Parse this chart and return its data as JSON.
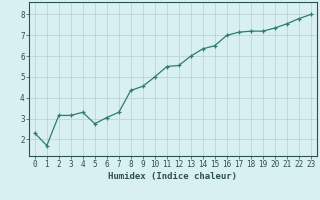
{
  "x": [
    0,
    1,
    2,
    3,
    4,
    5,
    6,
    7,
    8,
    9,
    10,
    11,
    12,
    13,
    14,
    15,
    16,
    17,
    18,
    19,
    20,
    21,
    22,
    23
  ],
  "y": [
    2.3,
    1.7,
    3.15,
    3.15,
    3.3,
    2.75,
    3.05,
    3.3,
    4.35,
    4.55,
    5.0,
    5.5,
    5.55,
    6.0,
    6.35,
    6.5,
    7.0,
    7.15,
    7.2,
    7.2,
    7.35,
    7.55,
    7.8,
    8.0
  ],
  "line_color": "#2d7d6e",
  "marker": "+",
  "marker_size": 3,
  "bg_color": "#d9f0f0",
  "grid_color": "#b8d0d0",
  "axis_bg": "#d9f0f0",
  "xlabel": "Humidex (Indice chaleur)",
  "xlim": [
    -0.5,
    23.5
  ],
  "ylim": [
    1.2,
    8.6
  ],
  "yticks": [
    2,
    3,
    4,
    5,
    6,
    7,
    8
  ],
  "xticks": [
    0,
    1,
    2,
    3,
    4,
    5,
    6,
    7,
    8,
    9,
    10,
    11,
    12,
    13,
    14,
    15,
    16,
    17,
    18,
    19,
    20,
    21,
    22,
    23
  ],
  "tick_color": "#2d5050",
  "label_fontsize": 6.5,
  "tick_fontsize": 5.5,
  "spine_color": "#2d5050",
  "linewidth": 0.9,
  "marker_size_pt": 3.5,
  "marker_linewidth": 0.9
}
